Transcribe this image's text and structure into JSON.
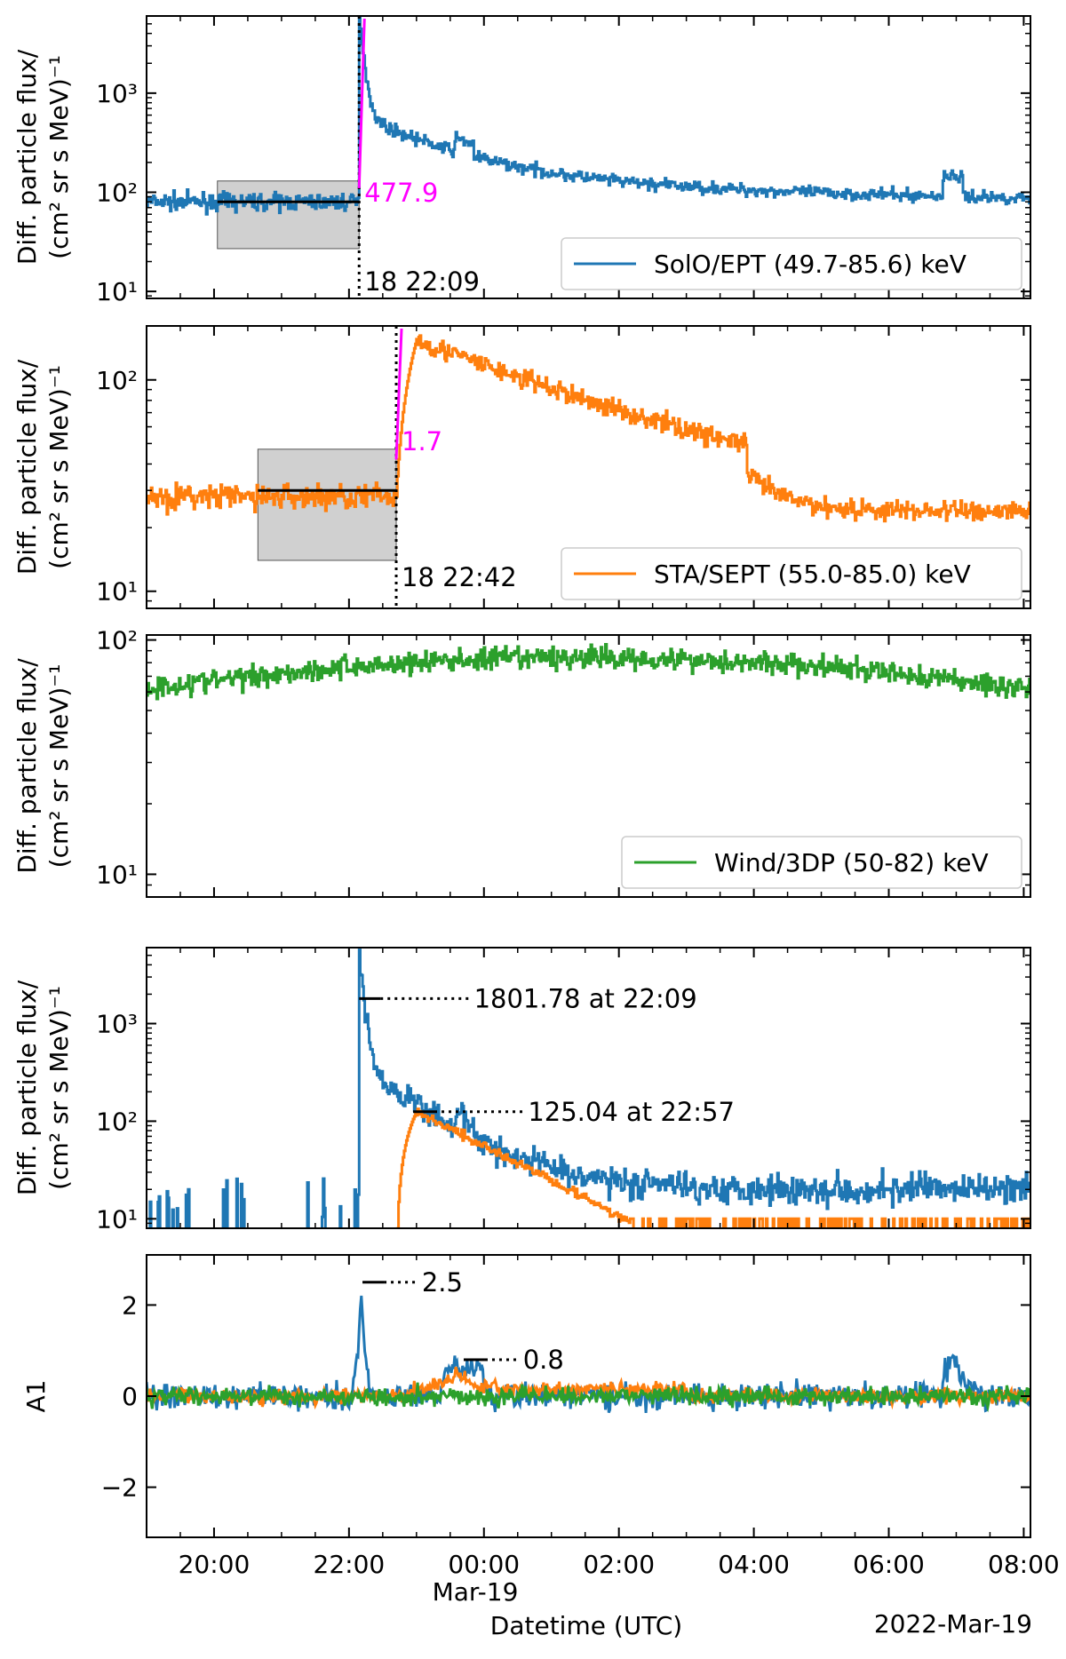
{
  "colors": {
    "solo": "#1f77b4",
    "sta": "#ff7f0e",
    "wind": "#2ca02c",
    "onset": "#ff00ff",
    "bg_box": "#c8c8c8"
  },
  "x_axis": {
    "tick_labels": [
      "20:00",
      "22:00",
      "00:00",
      "02:00",
      "04:00",
      "06:00",
      "08:00"
    ],
    "date_label": "Mar-19",
    "xlabel": "Datetime (UTC)",
    "corner_label": "2022-Mar-19"
  },
  "chart_data": [
    {
      "type": "line",
      "ylabel_line1": "Diff. particle flux/",
      "ylabel_line2": "(cm² sr s MeV)⁻¹",
      "yscale": "log",
      "ylim": [
        8.5,
        6000
      ],
      "ytick_labels": [
        "10¹",
        "10²",
        "10³"
      ],
      "series": [
        {
          "name": "SolO/EPT (49.7-85.6) keV",
          "color_key": "solo"
        }
      ],
      "legend_loc": "lower-right",
      "onset_time_label": "18 22:09",
      "onset_ratio_label": "477.9",
      "background_level": 80,
      "background_box": [
        27,
        130
      ]
    },
    {
      "type": "line",
      "ylabel_line1": "Diff. particle flux/",
      "ylabel_line2": "(cm² sr s MeV)⁻¹",
      "yscale": "log",
      "ylim": [
        8.3,
        180
      ],
      "ytick_labels": [
        "10¹",
        "10²"
      ],
      "series": [
        {
          "name": "STA/SEPT (55.0-85.0) keV",
          "color_key": "sta"
        }
      ],
      "legend_loc": "lower-right",
      "onset_time_label": "18 22:42",
      "onset_ratio_label": "1.7",
      "background_level": 30,
      "background_box": [
        14,
        47
      ]
    },
    {
      "type": "line",
      "ylabel_line1": "Diff. particle flux/",
      "ylabel_line2": "(cm² sr s MeV)⁻¹",
      "yscale": "log",
      "ylim": [
        8,
        105
      ],
      "ytick_labels": [
        "10¹",
        "10²"
      ],
      "series": [
        {
          "name": "Wind/3DP (50-82) keV",
          "color_key": "wind"
        }
      ],
      "legend_loc": "lower-right"
    },
    {
      "type": "line",
      "ylabel_line1": "Diff. particle flux/",
      "ylabel_line2": "(cm² sr s MeV)⁻¹",
      "yscale": "log",
      "ylim": [
        8,
        6000
      ],
      "ytick_labels": [
        "10¹",
        "10²",
        "10³"
      ],
      "series": [
        {
          "color_key": "solo"
        },
        {
          "color_key": "sta"
        }
      ],
      "peak_annotations": [
        {
          "label": "1801.78 at 22:09",
          "value": 1801.78,
          "time": "22:09"
        },
        {
          "label": "125.04 at 22:57",
          "value": 125.04,
          "time": "22:57"
        }
      ]
    },
    {
      "type": "line",
      "ylabel": "A1",
      "yscale": "linear",
      "ylim": [
        -3.1,
        3.1
      ],
      "ytick_labels": [
        "−2",
        "0",
        "2"
      ],
      "series": [
        {
          "color_key": "solo"
        },
        {
          "color_key": "sta"
        },
        {
          "color_key": "wind"
        }
      ],
      "peak_annotations": [
        {
          "label": "2.5",
          "value": 2.5
        },
        {
          "label": "0.8",
          "value": 0.8
        }
      ]
    }
  ]
}
